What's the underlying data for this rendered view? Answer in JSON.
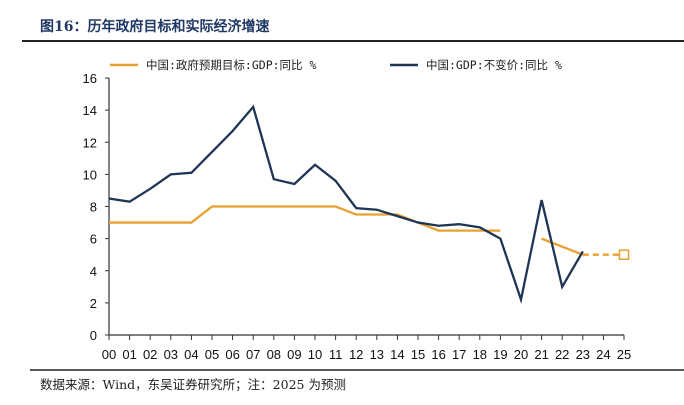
{
  "title": "图16：历年政府目标和实际经济增速",
  "source": "数据来源：Wind，东吴证券研究所；注：2025 为预测",
  "chart_data": {
    "type": "line",
    "categories": [
      "00",
      "01",
      "02",
      "03",
      "04",
      "05",
      "06",
      "07",
      "08",
      "09",
      "10",
      "11",
      "12",
      "13",
      "14",
      "15",
      "16",
      "17",
      "18",
      "19",
      "20",
      "21",
      "22",
      "23",
      "24",
      "25"
    ],
    "ylim": [
      0,
      16
    ],
    "yticks": [
      0,
      2,
      4,
      6,
      8,
      10,
      12,
      14,
      16
    ],
    "grid": false,
    "legend_position": "top",
    "series": [
      {
        "name": "中国:政府预期目标:GDP:同比 %",
        "color": "#E8A030",
        "values": [
          7,
          7,
          7,
          7,
          7,
          8,
          8,
          8,
          8,
          8,
          8,
          8,
          7.5,
          7.5,
          7.5,
          7,
          6.5,
          6.5,
          6.5,
          6.5,
          null,
          6,
          5.5,
          5,
          5,
          5
        ],
        "forecast_from": "23"
      },
      {
        "name": "中国:GDP:不变价:同比 %",
        "color": "#1F3555",
        "values": [
          8.5,
          8.3,
          9.1,
          10.0,
          10.1,
          11.4,
          12.7,
          14.2,
          9.7,
          9.4,
          10.6,
          9.6,
          7.9,
          7.8,
          7.4,
          7.0,
          6.8,
          6.9,
          6.7,
          6.0,
          2.2,
          8.4,
          3.0,
          5.2,
          null,
          null
        ]
      }
    ]
  }
}
